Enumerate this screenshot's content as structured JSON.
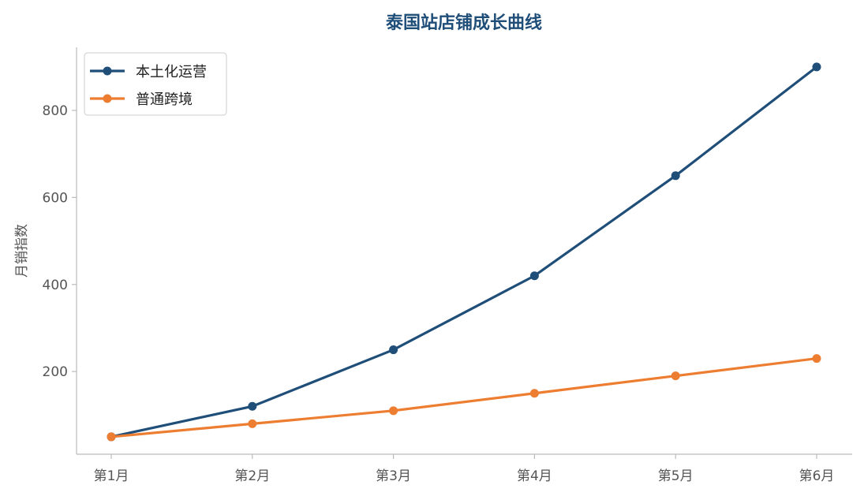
{
  "chart_data": {
    "type": "line",
    "title": "泰国站店铺成长曲线",
    "xlabel": "",
    "ylabel": "月销指数",
    "categories": [
      "第1月",
      "第2月",
      "第3月",
      "第4月",
      "第5月",
      "第6月"
    ],
    "series": [
      {
        "name": "本土化运营",
        "color": "#1f4e79",
        "values": [
          50,
          120,
          250,
          420,
          650,
          900
        ]
      },
      {
        "name": "普通跨境",
        "color": "#ed7d31",
        "values": [
          50,
          80,
          110,
          150,
          190,
          230
        ]
      }
    ],
    "ylim": [
      10,
      945
    ],
    "yticks": [
      200,
      400,
      600,
      800
    ],
    "grid": false,
    "legend_position": "top-left"
  }
}
